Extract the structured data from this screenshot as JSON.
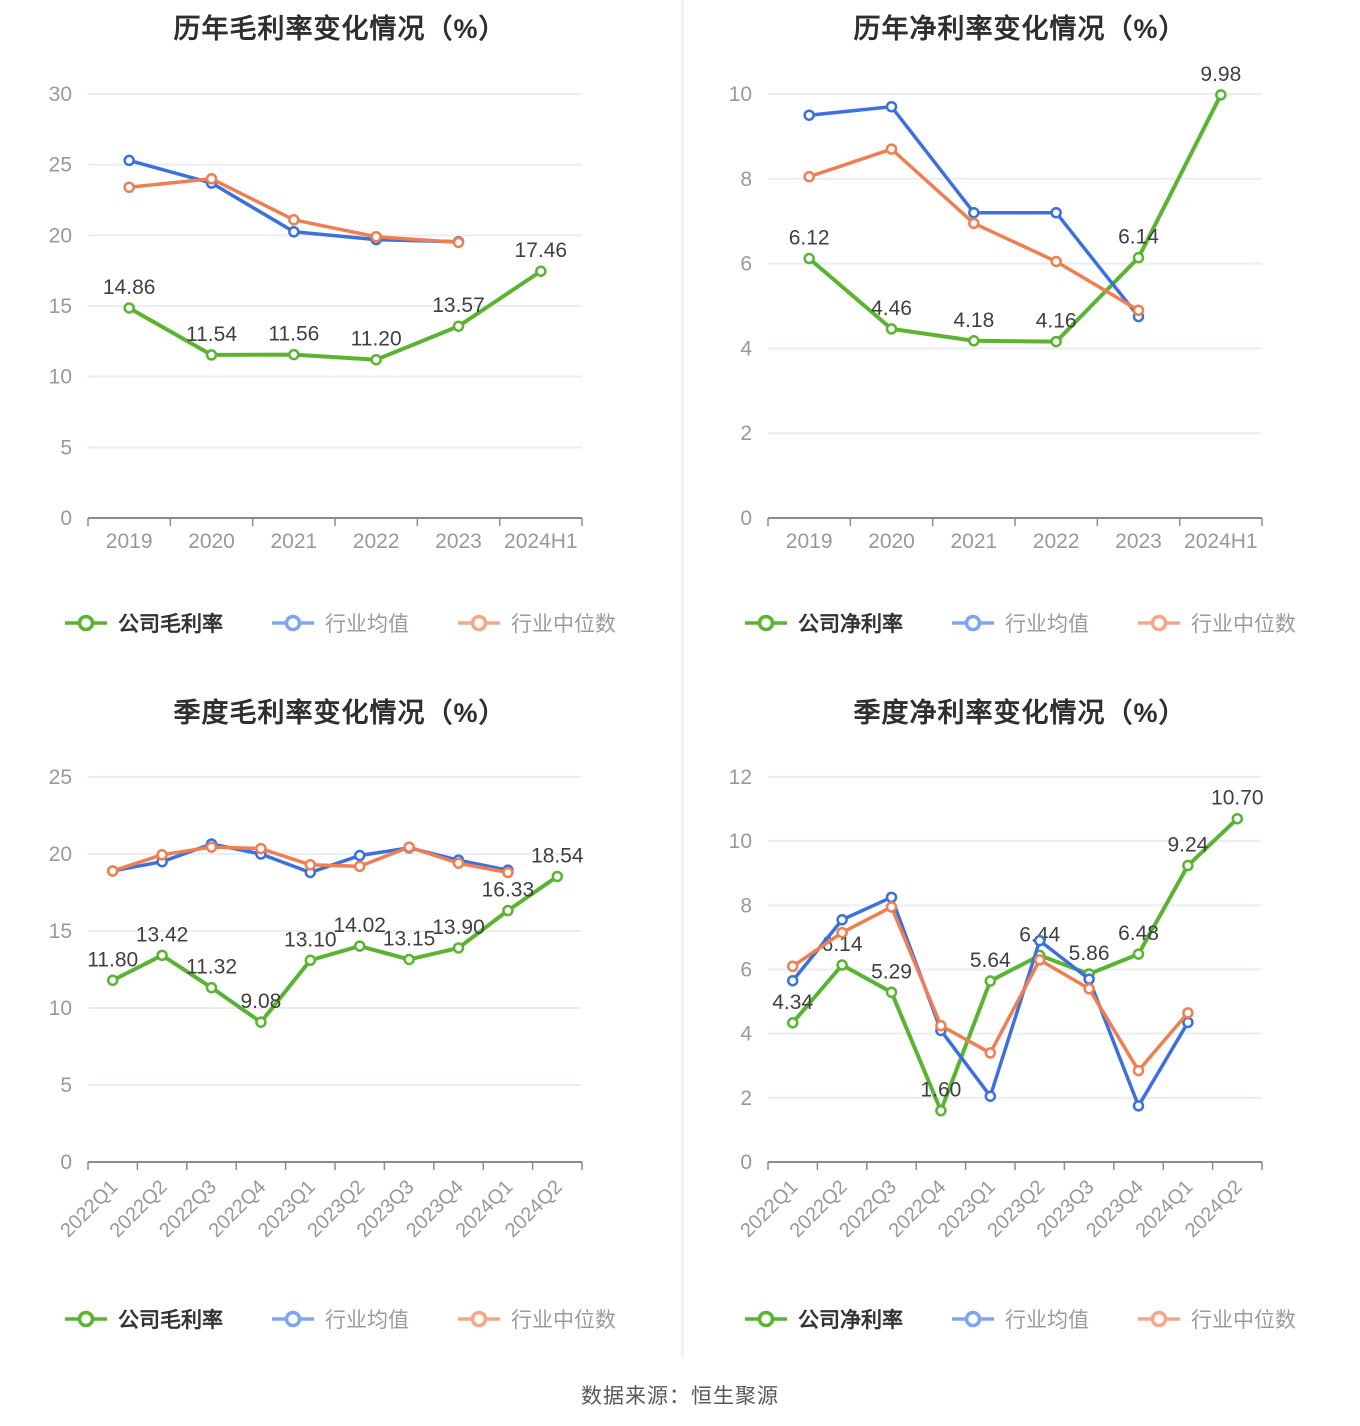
{
  "page": {
    "background": "#ffffff",
    "divider_color": "#f1f2f4"
  },
  "palette": {
    "company_green": "#5ab432",
    "industry_avg_blue": "#3b70dd",
    "industry_median_orange": "#ef7e52",
    "industry_avg_legend": "#7ea6f0",
    "industry_median_legend": "#f5a888",
    "grid_line": "#e9edf4",
    "axis_line": "#8c8c8c",
    "tick_text": "#999999",
    "data_label_text": "#404040"
  },
  "footer": {
    "source_text": "数据来源：恒生聚源"
  },
  "chart_data": [
    {
      "type": "line",
      "title": "历年毛利率变化情况（%）",
      "categories": [
        "2019",
        "2020",
        "2021",
        "2022",
        "2023",
        "2024H1"
      ],
      "ylim": [
        0,
        30
      ],
      "ytick_interval": 5,
      "x_label_rotate": false,
      "grid": true,
      "legend_position": "bottom",
      "series": [
        {
          "name": "公司毛利率",
          "color": "#5ab432",
          "legend_color": "#5ab432",
          "values": [
            14.86,
            11.54,
            11.56,
            11.2,
            13.57,
            17.46
          ],
          "point_labels": [
            "14.86",
            "11.54",
            "11.56",
            "11.20",
            "13.57",
            "17.46"
          ]
        },
        {
          "name": "行业均值",
          "color": "#3b70dd",
          "legend_color": "#7ea6f0",
          "values": [
            25.3,
            23.7,
            20.25,
            19.7,
            19.55
          ]
        },
        {
          "name": "行业中位数",
          "color": "#ef7e52",
          "legend_color": "#f5a888",
          "values": [
            23.4,
            24.0,
            21.1,
            19.9,
            19.5
          ]
        }
      ]
    },
    {
      "type": "line",
      "title": "历年净利率变化情况（%）",
      "categories": [
        "2019",
        "2020",
        "2021",
        "2022",
        "2023",
        "2024H1"
      ],
      "ylim": [
        0,
        10
      ],
      "ytick_interval": 2,
      "x_label_rotate": false,
      "grid": true,
      "legend_position": "bottom",
      "series": [
        {
          "name": "公司净利率",
          "color": "#5ab432",
          "legend_color": "#5ab432",
          "values": [
            6.12,
            4.46,
            4.18,
            4.16,
            6.14,
            9.98
          ],
          "point_labels": [
            "6.12",
            "4.46",
            "4.18",
            "4.16",
            "6.14",
            "9.98"
          ]
        },
        {
          "name": "行业均值",
          "color": "#3b70dd",
          "legend_color": "#7ea6f0",
          "values": [
            9.5,
            9.7,
            7.2,
            7.2,
            4.75
          ]
        },
        {
          "name": "行业中位数",
          "color": "#ef7e52",
          "legend_color": "#f5a888",
          "values": [
            8.05,
            8.7,
            6.95,
            6.05,
            4.9
          ]
        }
      ]
    },
    {
      "type": "line",
      "title": "季度毛利率变化情况（%）",
      "categories": [
        "2022Q1",
        "2022Q2",
        "2022Q3",
        "2022Q4",
        "2023Q1",
        "2023Q2",
        "2023Q3",
        "2023Q4",
        "2024Q1",
        "2024Q2"
      ],
      "ylim": [
        0,
        25
      ],
      "ytick_interval": 5,
      "x_label_rotate": true,
      "grid": true,
      "legend_position": "bottom",
      "series": [
        {
          "name": "公司毛利率",
          "color": "#5ab432",
          "legend_color": "#5ab432",
          "values": [
            11.8,
            13.42,
            11.32,
            9.08,
            13.1,
            14.02,
            13.15,
            13.9,
            16.33,
            18.54
          ],
          "point_labels": [
            "11.80",
            "13.42",
            "11.32",
            "9.08",
            "13.10",
            "14.02",
            "13.15",
            "13.90",
            "16.33",
            "18.54"
          ]
        },
        {
          "name": "行业均值",
          "color": "#3b70dd",
          "legend_color": "#7ea6f0",
          "values": [
            18.9,
            19.5,
            20.65,
            20.0,
            18.8,
            19.9,
            20.4,
            19.6,
            18.95
          ]
        },
        {
          "name": "行业中位数",
          "color": "#ef7e52",
          "legend_color": "#f5a888",
          "values": [
            18.9,
            19.95,
            20.45,
            20.35,
            19.3,
            19.2,
            20.45,
            19.4,
            18.8
          ]
        }
      ]
    },
    {
      "type": "line",
      "title": "季度净利率变化情况（%）",
      "categories": [
        "2022Q1",
        "2022Q2",
        "2022Q3",
        "2022Q4",
        "2023Q1",
        "2023Q2",
        "2023Q3",
        "2023Q4",
        "2024Q1",
        "2024Q2"
      ],
      "ylim": [
        0,
        12
      ],
      "ytick_interval": 2,
      "x_label_rotate": true,
      "grid": true,
      "legend_position": "bottom",
      "series": [
        {
          "name": "公司净利率",
          "color": "#5ab432",
          "legend_color": "#5ab432",
          "values": [
            4.34,
            6.14,
            5.29,
            1.6,
            5.64,
            6.44,
            5.86,
            6.48,
            9.24,
            10.7
          ],
          "point_labels": [
            "4.34",
            "6.14",
            "5.29",
            "1.60",
            "5.64",
            "6.44",
            "5.86",
            "6.48",
            "9.24",
            "10.70"
          ]
        },
        {
          "name": "行业均值",
          "color": "#3b70dd",
          "legend_color": "#7ea6f0",
          "values": [
            5.65,
            7.55,
            8.25,
            4.1,
            2.05,
            6.9,
            5.7,
            1.75,
            4.35
          ]
        },
        {
          "name": "行业中位数",
          "color": "#ef7e52",
          "legend_color": "#f5a888",
          "values": [
            6.1,
            7.15,
            7.95,
            4.25,
            3.4,
            6.3,
            5.4,
            2.85,
            4.65
          ]
        }
      ]
    }
  ]
}
